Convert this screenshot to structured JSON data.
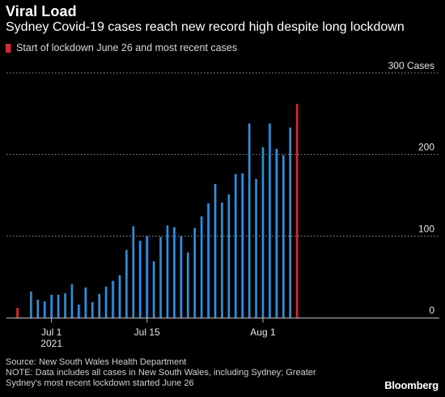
{
  "header": {
    "title": "Viral Load",
    "subtitle": "Sydney Covid-19 cases reach new record high despite long lockdown",
    "legend_label": "Start of lockdown June 26 and most recent cases"
  },
  "colors": {
    "background": "#000000",
    "bar": "#1f96e9",
    "highlight": "#e8222c",
    "gridline": "#9a9a9a",
    "text": "#ffffff"
  },
  "chart_data": {
    "type": "bar",
    "ylim": [
      0,
      300
    ],
    "y_ticks": [
      {
        "value": 300,
        "label": "300 Cases"
      },
      {
        "value": 200,
        "label": "200"
      },
      {
        "value": 100,
        "label": "100"
      },
      {
        "value": 0,
        "label": "0"
      }
    ],
    "x_ticks": [
      {
        "date": "2021-07-01",
        "label": "Jul 1",
        "sublabel": "2021"
      },
      {
        "date": "2021-07-15",
        "label": "Jul 15",
        "sublabel": ""
      },
      {
        "date": "2021-08-01",
        "label": "Aug 1",
        "sublabel": ""
      }
    ],
    "bars": [
      {
        "date": "2021-06-26",
        "value": 12,
        "highlight": true
      },
      {
        "date": "2021-06-27",
        "value": 0
      },
      {
        "date": "2021-06-28",
        "value": 32
      },
      {
        "date": "2021-06-29",
        "value": 22
      },
      {
        "date": "2021-06-30",
        "value": 20
      },
      {
        "date": "2021-07-01",
        "value": 28
      },
      {
        "date": "2021-07-02",
        "value": 28
      },
      {
        "date": "2021-07-03",
        "value": 30
      },
      {
        "date": "2021-07-04",
        "value": 41
      },
      {
        "date": "2021-07-05",
        "value": 16
      },
      {
        "date": "2021-07-06",
        "value": 37
      },
      {
        "date": "2021-07-07",
        "value": 19
      },
      {
        "date": "2021-07-08",
        "value": 29
      },
      {
        "date": "2021-07-09",
        "value": 38
      },
      {
        "date": "2021-07-10",
        "value": 45
      },
      {
        "date": "2021-07-11",
        "value": 52
      },
      {
        "date": "2021-07-12",
        "value": 83
      },
      {
        "date": "2021-07-13",
        "value": 112
      },
      {
        "date": "2021-07-14",
        "value": 94
      },
      {
        "date": "2021-07-15",
        "value": 100
      },
      {
        "date": "2021-07-16",
        "value": 69
      },
      {
        "date": "2021-07-17",
        "value": 99
      },
      {
        "date": "2021-07-18",
        "value": 113
      },
      {
        "date": "2021-07-19",
        "value": 111
      },
      {
        "date": "2021-07-20",
        "value": 100
      },
      {
        "date": "2021-07-21",
        "value": 80
      },
      {
        "date": "2021-07-22",
        "value": 110
      },
      {
        "date": "2021-07-23",
        "value": 124
      },
      {
        "date": "2021-07-24",
        "value": 140
      },
      {
        "date": "2021-07-25",
        "value": 164
      },
      {
        "date": "2021-07-26",
        "value": 141
      },
      {
        "date": "2021-07-27",
        "value": 151
      },
      {
        "date": "2021-07-28",
        "value": 176
      },
      {
        "date": "2021-07-29",
        "value": 177
      },
      {
        "date": "2021-07-30",
        "value": 238
      },
      {
        "date": "2021-07-31",
        "value": 170
      },
      {
        "date": "2021-08-01",
        "value": 209
      },
      {
        "date": "2021-08-02",
        "value": 238
      },
      {
        "date": "2021-08-03",
        "value": 207
      },
      {
        "date": "2021-08-04",
        "value": 199
      },
      {
        "date": "2021-08-05",
        "value": 233
      },
      {
        "date": "2021-08-06",
        "value": 262,
        "highlight": true
      }
    ]
  },
  "footer": {
    "source": "Source: New South Wales Health Department",
    "note_line1": "NOTE: Data includes all cases in New South Wales, including Sydney; Greater",
    "note_line2": "Sydney's most recent lockdown started June 26"
  },
  "brand": "Bloomberg"
}
